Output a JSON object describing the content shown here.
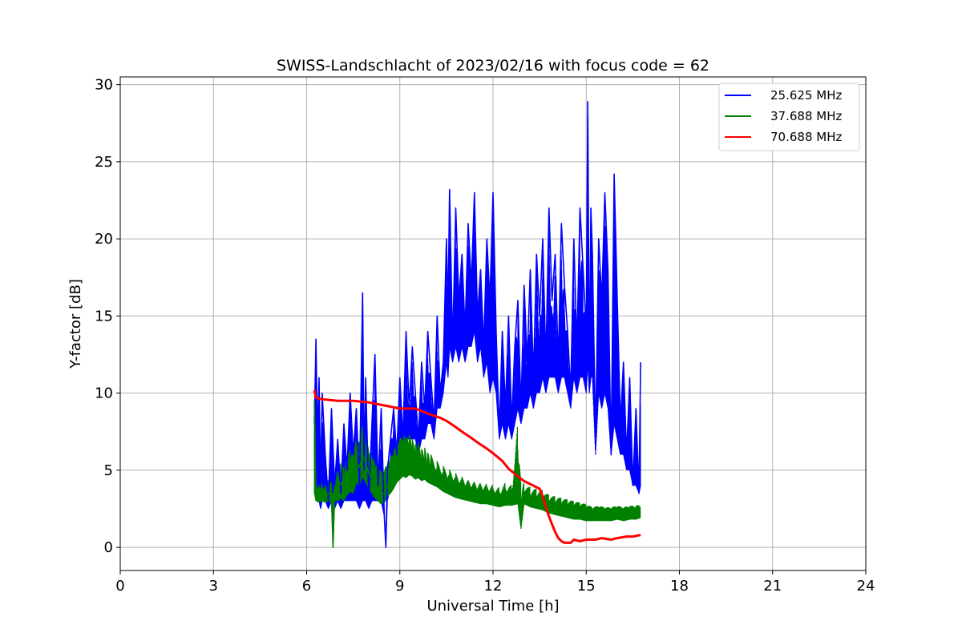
{
  "chart_data": {
    "type": "line",
    "title": "SWISS-Landschlacht of 2023/02/16 with focus code = 62",
    "xlabel": "Universal Time [h]",
    "ylabel": "Y-factor [dB]",
    "xlim": [
      0,
      24
    ],
    "ylim": [
      -1.5,
      30.5
    ],
    "xticks": [
      0,
      3,
      6,
      9,
      12,
      15,
      18,
      21,
      24
    ],
    "yticks": [
      0,
      5,
      10,
      15,
      20,
      25,
      30
    ],
    "grid": true,
    "legend_position": "top-right",
    "series": [
      {
        "name": "25.625 MHz",
        "color": "#0000ff",
        "x": [
          6.25,
          6.3,
          6.35,
          6.4,
          6.45,
          6.5,
          6.6,
          6.7,
          6.8,
          6.9,
          7.0,
          7.1,
          7.2,
          7.3,
          7.4,
          7.5,
          7.6,
          7.7,
          7.8,
          7.85,
          7.9,
          8.0,
          8.1,
          8.2,
          8.3,
          8.4,
          8.5,
          8.55,
          8.6,
          8.7,
          8.8,
          8.9,
          9.0,
          9.1,
          9.2,
          9.3,
          9.4,
          9.5,
          9.6,
          9.7,
          9.8,
          9.9,
          10.0,
          10.1,
          10.2,
          10.3,
          10.4,
          10.5,
          10.55,
          10.6,
          10.7,
          10.8,
          10.9,
          11.0,
          11.1,
          11.2,
          11.3,
          11.4,
          11.5,
          11.6,
          11.7,
          11.8,
          11.9,
          12.0,
          12.1,
          12.2,
          12.3,
          12.4,
          12.5,
          12.6,
          12.7,
          12.8,
          12.9,
          13.0,
          13.1,
          13.2,
          13.3,
          13.4,
          13.5,
          13.6,
          13.7,
          13.8,
          13.9,
          14.0,
          14.1,
          14.2,
          14.3,
          14.4,
          14.5,
          14.6,
          14.7,
          14.8,
          14.9,
          15.0,
          15.05,
          15.1,
          15.15,
          15.2,
          15.3,
          15.4,
          15.5,
          15.6,
          15.7,
          15.8,
          15.9,
          16.0,
          16.1,
          16.2,
          16.3,
          16.4,
          16.5,
          16.6,
          16.7,
          16.75
        ],
        "y": [
          8,
          13.5,
          7,
          11,
          4,
          10,
          6,
          3,
          9,
          4,
          7,
          3.5,
          8,
          5,
          10,
          6,
          9,
          4,
          16.5,
          5,
          11,
          3,
          8,
          12.5,
          4,
          9,
          2,
          0,
          5,
          7,
          9,
          6,
          11,
          7,
          14,
          9,
          13,
          10,
          7,
          12,
          9,
          14,
          11,
          8,
          15,
          10,
          12,
          20,
          15,
          23.2,
          13,
          22,
          16,
          19,
          14,
          21,
          17,
          23,
          15,
          18,
          13,
          20,
          16,
          23,
          14,
          7.5,
          14,
          9,
          15,
          8,
          13,
          16,
          9,
          17,
          12,
          18,
          11,
          19,
          15,
          20,
          12,
          22,
          16,
          19,
          12,
          21,
          17,
          14,
          10,
          20,
          13,
          22,
          18,
          14,
          28.9,
          11,
          22,
          19,
          7,
          20,
          16,
          23,
          18,
          6,
          24.2,
          16,
          8,
          12,
          6,
          11,
          4,
          9,
          3.5,
          12
        ],
        "band_low": [
          6,
          4,
          3,
          3,
          2.5,
          3,
          3,
          2.5,
          3,
          2.5,
          3,
          2.5,
          3,
          3,
          3,
          3,
          3,
          2.5,
          3,
          3,
          3,
          2.5,
          3,
          3,
          3,
          3,
          2,
          0,
          3,
          4,
          5,
          5,
          6,
          6,
          7,
          7,
          7,
          7,
          6,
          7,
          7,
          8,
          8,
          7,
          9,
          9,
          10,
          12,
          11,
          13,
          12,
          13,
          12,
          13,
          12,
          13,
          13,
          14,
          12,
          13,
          11,
          12,
          10,
          11,
          10,
          7,
          8,
          7,
          8,
          7,
          8,
          9,
          8,
          9,
          9,
          10,
          9,
          10,
          10,
          11,
          10,
          11,
          11,
          11,
          10,
          11,
          11,
          10,
          9,
          11,
          10,
          11,
          11,
          10,
          12,
          10,
          11,
          11,
          6,
          10,
          9,
          10,
          9,
          6,
          8,
          7,
          6,
          6,
          5,
          5,
          4,
          4,
          3.5,
          4
        ]
      },
      {
        "name": "37.688 MHz",
        "color": "#008000",
        "x": [
          6.25,
          6.3,
          6.4,
          6.5,
          6.6,
          6.7,
          6.8,
          6.85,
          6.9,
          7.0,
          7.1,
          7.2,
          7.3,
          7.4,
          7.5,
          7.6,
          7.7,
          7.8,
          7.9,
          8.0,
          8.1,
          8.2,
          8.3,
          8.4,
          8.5,
          8.6,
          8.7,
          8.8,
          8.9,
          9.0,
          9.1,
          9.2,
          9.3,
          9.4,
          9.5,
          9.6,
          9.7,
          9.8,
          9.9,
          10.0,
          10.2,
          10.4,
          10.6,
          10.8,
          11.0,
          11.2,
          11.4,
          11.6,
          11.8,
          12.0,
          12.2,
          12.4,
          12.6,
          12.8,
          12.9,
          13.0,
          13.2,
          13.4,
          13.6,
          13.8,
          14.0,
          14.2,
          14.4,
          14.6,
          14.8,
          15.0,
          15.2,
          15.4,
          15.6,
          15.8,
          16.0,
          16.2,
          16.4,
          16.6,
          16.75
        ],
        "y": [
          9.5,
          3.4,
          3.2,
          3.4,
          3.2,
          3.5,
          3.3,
          0,
          3.5,
          3.8,
          4.2,
          3.9,
          4.5,
          4.8,
          4.6,
          5.5,
          5.2,
          6.0,
          5.5,
          4.8,
          4.5,
          4.0,
          3.8,
          3.5,
          3.5,
          4.0,
          4.2,
          4.5,
          5.0,
          5.2,
          5.5,
          5.3,
          5.6,
          5.4,
          5.2,
          5.3,
          5.0,
          5.1,
          4.9,
          4.8,
          4.5,
          4.2,
          4.0,
          3.8,
          3.6,
          3.5,
          3.4,
          3.3,
          3.2,
          3.1,
          3.0,
          3.2,
          3.1,
          3.3,
          1.5,
          3.2,
          3.0,
          2.9,
          2.8,
          2.6,
          2.5,
          2.4,
          2.3,
          2.2,
          2.2,
          2.1,
          2.0,
          2.1,
          2.0,
          2.0,
          2.1,
          2.0,
          2.1,
          2.1,
          2.2
        ],
        "band_low": [
          3.5,
          3.0,
          2.9,
          3.0,
          2.9,
          3.0,
          2.9,
          0,
          3.0,
          3.0,
          3.2,
          3.0,
          3.4,
          3.6,
          3.5,
          4.2,
          4.0,
          4.6,
          4.2,
          3.8,
          3.5,
          3.2,
          3.0,
          2.8,
          2.9,
          3.3,
          3.5,
          3.8,
          4.2,
          4.4,
          4.6,
          4.5,
          4.7,
          4.6,
          4.4,
          4.5,
          4.3,
          4.4,
          4.2,
          4.1,
          3.9,
          3.6,
          3.4,
          3.2,
          3.1,
          3.0,
          2.9,
          2.8,
          2.8,
          2.7,
          2.6,
          2.7,
          2.7,
          2.8,
          1.2,
          2.8,
          2.6,
          2.5,
          2.4,
          2.2,
          2.1,
          2.0,
          1.9,
          1.8,
          1.8,
          1.7,
          1.7,
          1.7,
          1.7,
          1.7,
          1.8,
          1.7,
          1.8,
          1.8,
          1.9
        ],
        "band_high": [
          9.8,
          4.3,
          4.2,
          4.3,
          4.1,
          4.5,
          4.3,
          3.6,
          4.5,
          5.0,
          5.5,
          5.2,
          6.0,
          6.3,
          6.0,
          7.0,
          6.8,
          8.0,
          7.2,
          6.3,
          6.0,
          5.4,
          5.2,
          4.9,
          5.0,
          5.5,
          5.8,
          6.2,
          6.8,
          7.0,
          7.4,
          7.1,
          7.3,
          7.0,
          6.7,
          6.8,
          6.4,
          6.5,
          6.2,
          6.1,
          5.7,
          5.4,
          5.2,
          5.0,
          4.8,
          4.6,
          4.5,
          4.4,
          4.3,
          4.2,
          4.0,
          4.3,
          4.1,
          8.3,
          4.0,
          4.2,
          3.9,
          3.8,
          3.7,
          3.4,
          3.3,
          3.2,
          3.1,
          3.0,
          2.9,
          2.8,
          2.6,
          2.7,
          2.6,
          2.6,
          2.7,
          2.6,
          2.7,
          2.7,
          2.8
        ]
      },
      {
        "name": "70.688 MHz",
        "color": "#ff0000",
        "x": [
          6.25,
          6.3,
          6.5,
          7.0,
          7.5,
          8.0,
          8.5,
          9.0,
          9.5,
          10.0,
          10.3,
          10.5,
          10.8,
          11.0,
          11.3,
          11.5,
          11.8,
          12.0,
          12.3,
          12.5,
          12.8,
          13.0,
          13.3,
          13.5,
          13.6,
          13.7,
          13.8,
          13.9,
          14.0,
          14.1,
          14.2,
          14.3,
          14.4,
          14.5,
          14.6,
          14.8,
          15.0,
          15.3,
          15.5,
          15.8,
          16.0,
          16.3,
          16.5,
          16.75
        ],
        "y": [
          10.2,
          9.7,
          9.6,
          9.5,
          9.5,
          9.4,
          9.2,
          9.0,
          9.0,
          8.6,
          8.4,
          8.2,
          7.8,
          7.5,
          7.1,
          6.8,
          6.4,
          6.1,
          5.6,
          5.1,
          4.6,
          4.3,
          4.0,
          3.8,
          3.3,
          2.6,
          2.0,
          1.5,
          1.0,
          0.6,
          0.4,
          0.3,
          0.3,
          0.3,
          0.5,
          0.4,
          0.5,
          0.5,
          0.6,
          0.5,
          0.6,
          0.7,
          0.7,
          0.8
        ]
      }
    ]
  }
}
